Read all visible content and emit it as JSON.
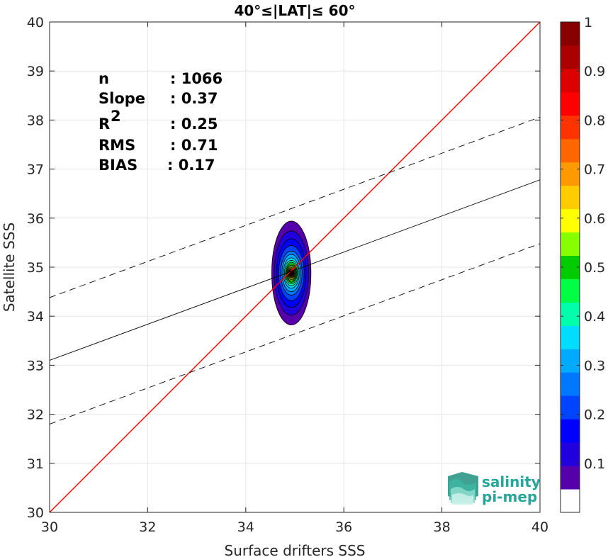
{
  "chart_data": {
    "type": "heatmap",
    "title": "40°≤|LAT|≤ 60°",
    "xlabel": "Surface drifters SSS",
    "ylabel": "Satellite SSS",
    "xlim": [
      30,
      40
    ],
    "ylim": [
      30,
      40
    ],
    "x_ticks": [
      "30",
      "32",
      "34",
      "36",
      "38",
      "40"
    ],
    "y_ticks": [
      "30",
      "31",
      "32",
      "33",
      "34",
      "35",
      "36",
      "37",
      "38",
      "39",
      "40"
    ],
    "grid": true,
    "stats": [
      {
        "label": "n",
        "value": ": 1066"
      },
      {
        "label": "Slope",
        "value": ": 0.37"
      },
      {
        "label": "R",
        "sup": "2",
        "value": ": 0.25"
      },
      {
        "label": "RMS",
        "value": ": 0.71"
      },
      {
        "label": "BIAS",
        "value": ": 0.17"
      }
    ],
    "lines": [
      {
        "name": "one-to-one",
        "color": "#ff0000",
        "style": "solid",
        "points": [
          [
            30,
            30
          ],
          [
            40,
            40
          ]
        ]
      },
      {
        "name": "regression",
        "color": "#000000",
        "style": "solid",
        "points": [
          [
            30,
            33.1
          ],
          [
            40,
            36.78
          ]
        ]
      },
      {
        "name": "upper-bound",
        "color": "#000000",
        "style": "dashed",
        "points": [
          [
            30,
            34.38
          ],
          [
            40,
            38.06
          ]
        ]
      },
      {
        "name": "lower-bound",
        "color": "#000000",
        "style": "dashed",
        "points": [
          [
            30,
            31.8
          ],
          [
            40,
            35.48
          ]
        ]
      }
    ],
    "density": {
      "center": [
        34.93,
        34.88
      ],
      "levels": [
        {
          "level": 0.05,
          "color": "#5500aa",
          "rx": 0.4,
          "ry": 1.06
        },
        {
          "level": 0.1,
          "color": "#2200dd",
          "rx": 0.35,
          "ry": 0.86
        },
        {
          "level": 0.15,
          "color": "#0000ff",
          "rx": 0.3,
          "ry": 0.7
        },
        {
          "level": 0.2,
          "color": "#0044ff",
          "rx": 0.26,
          "ry": 0.56
        },
        {
          "level": 0.25,
          "color": "#0077ff",
          "rx": 0.22,
          "ry": 0.45
        },
        {
          "level": 0.3,
          "color": "#00aaff",
          "rx": 0.19,
          "ry": 0.38
        },
        {
          "level": 0.35,
          "color": "#00ddff",
          "rx": 0.16,
          "ry": 0.31
        },
        {
          "level": 0.4,
          "color": "#00ffaa",
          "rx": 0.14,
          "ry": 0.26
        },
        {
          "level": 0.45,
          "color": "#00ff44",
          "rx": 0.12,
          "ry": 0.22
        },
        {
          "level": 0.5,
          "color": "#00cc00",
          "rx": 0.105,
          "ry": 0.19
        },
        {
          "level": 0.55,
          "color": "#88ff00",
          "rx": 0.09,
          "ry": 0.16
        },
        {
          "level": 0.6,
          "color": "#ffff00",
          "rx": 0.078,
          "ry": 0.135
        },
        {
          "level": 0.65,
          "color": "#ffcc00",
          "rx": 0.066,
          "ry": 0.115
        },
        {
          "level": 0.7,
          "color": "#ff9900",
          "rx": 0.055,
          "ry": 0.095
        },
        {
          "level": 0.75,
          "color": "#ff6600",
          "rx": 0.046,
          "ry": 0.08
        },
        {
          "level": 0.8,
          "color": "#ff3300",
          "rx": 0.038,
          "ry": 0.065
        },
        {
          "level": 0.85,
          "color": "#ff0000",
          "rx": 0.03,
          "ry": 0.052
        },
        {
          "level": 0.9,
          "color": "#dd0000",
          "rx": 0.022,
          "ry": 0.04
        },
        {
          "level": 0.95,
          "color": "#aa0000",
          "rx": 0.015,
          "ry": 0.028
        },
        {
          "level": 1.0,
          "color": "#880000",
          "rx": 0.008,
          "ry": 0.016
        }
      ]
    },
    "colorbar": {
      "range": [
        0,
        1
      ],
      "tick_labels": [
        "0.1",
        "0.2",
        "0.3",
        "0.4",
        "0.5",
        "0.6",
        "0.7",
        "0.8",
        "0.9",
        "1"
      ],
      "colors": [
        "#ffffff",
        "#5500aa",
        "#2200dd",
        "#0000ff",
        "#0044ff",
        "#0077ff",
        "#00aaff",
        "#00ddff",
        "#00ffaa",
        "#00ff44",
        "#00cc00",
        "#88ff00",
        "#ffff00",
        "#ffcc00",
        "#ff9900",
        "#ff6600",
        "#ff3300",
        "#ff0000",
        "#dd0000",
        "#aa0000",
        "#880000"
      ]
    },
    "logo": {
      "line1": "salinity",
      "line2": "pi-mep",
      "color": "#26a69a"
    }
  }
}
